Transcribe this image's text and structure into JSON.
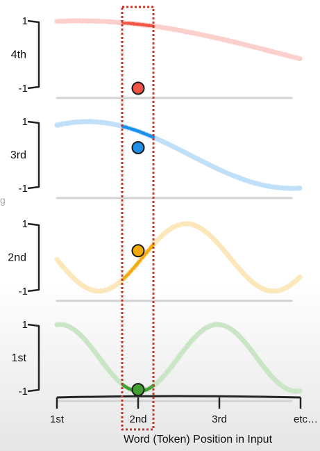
{
  "chart_data": {
    "type": "line",
    "xlabel": "Word (Token) Position in Input",
    "x_ticks": [
      "1st",
      "2nd",
      "3rd",
      "etc…"
    ],
    "x_range": [
      1,
      4
    ],
    "highlight_position": "2nd",
    "left_edge_fragment": "g",
    "panels": [
      {
        "label": "4th",
        "color": "#f05545",
        "ymax_label": "1",
        "ymin_label": "-1",
        "ylim": [
          -1,
          1
        ],
        "frequency": 0.16,
        "phase": 1.4,
        "dot_value": -1.0
      },
      {
        "label": "3rd",
        "color": "#1e8fe8",
        "ymax_label": "1",
        "ymin_label": "-1",
        "ylim": [
          -1,
          1
        ],
        "frequency": 0.32,
        "phase": 1.1,
        "dot_value": 0.22
      },
      {
        "label": "2nd",
        "color": "#f2a90a",
        "ymax_label": "1",
        "ymin_label": "-1",
        "ylim": [
          -1,
          1
        ],
        "frequency": 0.75,
        "phase": 3.2,
        "dot_value": 0.2
      },
      {
        "label": "1st",
        "color": "#42a032",
        "ymax_label": "1",
        "ymin_label": "-1",
        "ylim": [
          -1,
          1
        ],
        "frequency": 0.83,
        "phase": 1.45,
        "dot_value": -0.95
      }
    ]
  }
}
